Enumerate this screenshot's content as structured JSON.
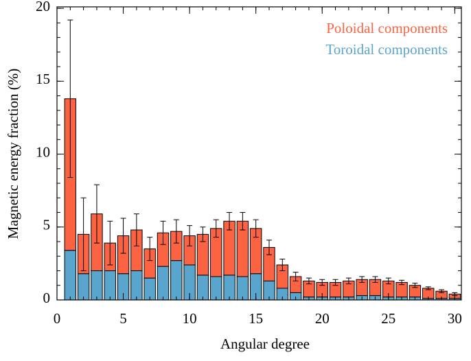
{
  "chart_data": {
    "type": "stacked-bar",
    "xlabel": "Angular degree",
    "ylabel": "Magnetic energy fraction (%)",
    "x": [
      1,
      2,
      3,
      4,
      5,
      6,
      7,
      8,
      9,
      10,
      11,
      12,
      13,
      14,
      15,
      16,
      17,
      18,
      19,
      20,
      21,
      22,
      23,
      24,
      25,
      26,
      27,
      28,
      29,
      30
    ],
    "series": [
      {
        "name": "Toroidal components",
        "color": "#5aa5cd",
        "values": [
          3.4,
          1.8,
          2.0,
          2.0,
          1.8,
          2.0,
          1.5,
          2.3,
          2.7,
          2.4,
          1.7,
          1.6,
          1.7,
          1.6,
          1.8,
          1.3,
          0.8,
          0.5,
          0.2,
          0.2,
          0.2,
          0.2,
          0.3,
          0.3,
          0.2,
          0.2,
          0.2,
          0.1,
          0.1,
          0.1
        ]
      },
      {
        "name": "Poloidal components",
        "color": "#fb6342",
        "values": [
          10.4,
          2.7,
          3.9,
          1.9,
          2.6,
          2.8,
          2.0,
          2.3,
          2.0,
          2.0,
          2.8,
          3.3,
          3.7,
          3.8,
          3.1,
          2.3,
          1.6,
          1.1,
          1.1,
          1.0,
          1.0,
          1.1,
          1.1,
          1.1,
          1.1,
          1.0,
          0.8,
          0.7,
          0.5,
          0.3
        ],
        "errors": [
          5.4,
          2.5,
          2.0,
          1.5,
          1.2,
          1.1,
          0.8,
          0.8,
          0.8,
          0.7,
          0.5,
          0.6,
          0.6,
          0.6,
          0.6,
          0.5,
          0.4,
          0.3,
          0.2,
          0.2,
          0.2,
          0.2,
          0.2,
          0.2,
          0.2,
          0.15,
          0.15,
          0.1,
          0.1,
          0.1
        ]
      }
    ],
    "xlim": [
      0,
      30.5
    ],
    "xticks": [
      0,
      5,
      10,
      15,
      20,
      25,
      30
    ],
    "ylim": [
      0,
      20.1
    ],
    "yticks": [
      0,
      5,
      10,
      15,
      20
    ],
    "legend": "upper-right"
  }
}
